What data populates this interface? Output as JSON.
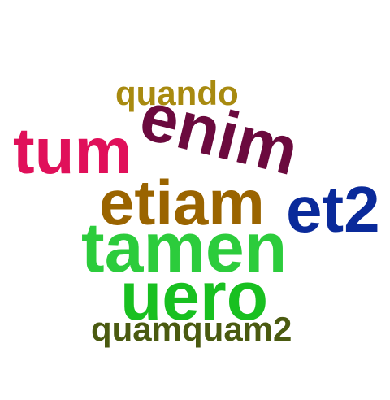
{
  "words": {
    "quando": "quando",
    "enim": "enim",
    "tum": "tum",
    "etiam": "etiam",
    "et2": "et2",
    "tamen": "tamen",
    "uero": "uero",
    "quamquam2": "quamquam2"
  },
  "colors": {
    "quando": "#a88a10",
    "enim": "#6b0a3e",
    "tum": "#e0105a",
    "etiam": "#9a6400",
    "et2": "#0a2a9a",
    "tamen": "#2ccc3c",
    "uero": "#18c020",
    "quamquam2": "#4a5a10",
    "background": "#ffffff"
  }
}
